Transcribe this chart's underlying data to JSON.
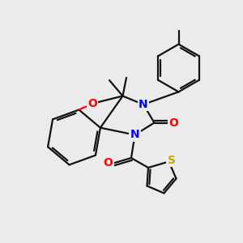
{
  "background_color": "#ebebeb",
  "atom_colors": {
    "N": "#0000ff",
    "O": "#ff0000",
    "S": "#ccaa00",
    "C": "#111111"
  },
  "bond_color": "#111111",
  "bond_width": 1.6,
  "figsize": [
    3.0,
    3.0
  ],
  "dpi": 100,
  "xlim": [
    0,
    10
  ],
  "ylim": [
    0,
    10
  ]
}
